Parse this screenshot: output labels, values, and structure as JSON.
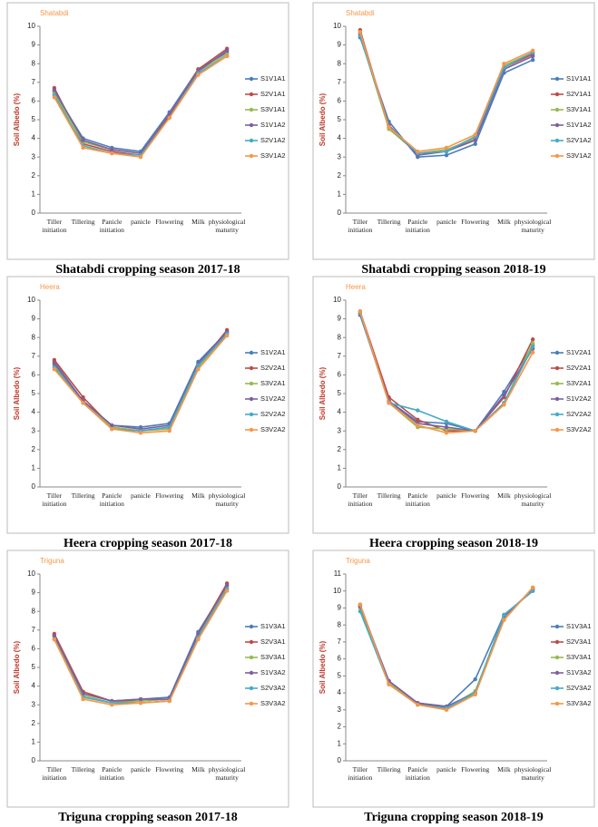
{
  "chart_data": [
    {
      "type": "line",
      "title": "Shatabdi",
      "y_label": "Soil Albedo (%)",
      "caption": "Shatabdi cropping season 2017-18",
      "categories": [
        "Tiller initiation",
        "Tillering",
        "Panicle initiation",
        "panicle",
        "Flowering",
        "Milk",
        "physiological maturity"
      ],
      "ylim": [
        0,
        10
      ],
      "yticks": [
        0,
        1,
        2,
        3,
        4,
        5,
        6,
        7,
        8,
        9,
        10
      ],
      "series": [
        {
          "name": "S1V1A1",
          "color": "#4a7ebb",
          "values": [
            6.5,
            4.0,
            3.5,
            3.3,
            5.4,
            7.7,
            8.6
          ]
        },
        {
          "name": "S2V1A1",
          "color": "#be4b48",
          "values": [
            6.7,
            3.7,
            3.3,
            3.1,
            5.2,
            7.7,
            8.8
          ]
        },
        {
          "name": "S3V1A1",
          "color": "#98b954",
          "values": [
            6.4,
            3.8,
            3.4,
            3.2,
            5.3,
            7.6,
            8.5
          ]
        },
        {
          "name": "S1V1A2",
          "color": "#7d60a0",
          "values": [
            6.6,
            3.9,
            3.4,
            3.2,
            5.3,
            7.6,
            8.7
          ]
        },
        {
          "name": "S2V1A2",
          "color": "#46aac5",
          "values": [
            6.3,
            3.6,
            3.2,
            3.1,
            5.1,
            7.5,
            8.4
          ]
        },
        {
          "name": "S3V1A2",
          "color": "#f79646",
          "values": [
            6.2,
            3.5,
            3.2,
            3.0,
            5.1,
            7.4,
            8.4
          ]
        }
      ]
    },
    {
      "type": "line",
      "title": "Shatabdi",
      "y_label": "Soil Albedo (%)",
      "caption": "Shatabdi cropping season 2018-19",
      "categories": [
        "Tiller initiation",
        "Tillering",
        "Panicle initiation",
        "panicle",
        "Flowering",
        "Milk",
        "physiological maturity"
      ],
      "ylim": [
        0,
        10
      ],
      "yticks": [
        0,
        1,
        2,
        3,
        4,
        5,
        6,
        7,
        8,
        9,
        10
      ],
      "series": [
        {
          "name": "S1V1A1",
          "color": "#4a7ebb",
          "values": [
            9.4,
            4.9,
            3.0,
            3.1,
            3.7,
            7.5,
            8.2
          ]
        },
        {
          "name": "S2V1A1",
          "color": "#be4b48",
          "values": [
            9.8,
            4.6,
            3.2,
            3.3,
            4.0,
            7.8,
            8.5
          ]
        },
        {
          "name": "S3V1A1",
          "color": "#98b954",
          "values": [
            9.5,
            4.5,
            3.2,
            3.4,
            4.0,
            7.9,
            8.6
          ]
        },
        {
          "name": "S1V1A2",
          "color": "#7d60a0",
          "values": [
            9.6,
            4.7,
            3.1,
            3.3,
            3.9,
            7.7,
            8.4
          ]
        },
        {
          "name": "S2V1A2",
          "color": "#46aac5",
          "values": [
            9.5,
            4.6,
            3.2,
            3.3,
            4.1,
            7.8,
            8.6
          ]
        },
        {
          "name": "S3V1A2",
          "color": "#f79646",
          "values": [
            9.7,
            4.6,
            3.3,
            3.5,
            4.2,
            8.0,
            8.7
          ]
        }
      ]
    },
    {
      "type": "line",
      "title": "Heera",
      "y_label": "Soil Albedo (%)",
      "caption": "Heera cropping season 2017-18",
      "categories": [
        "Tiller initiation",
        "Tillering",
        "Panicle initiation",
        "panicle",
        "Flowering",
        "Milk",
        "physiological maturity"
      ],
      "ylim": [
        0,
        10
      ],
      "yticks": [
        0,
        1,
        2,
        3,
        4,
        5,
        6,
        7,
        8,
        9,
        10
      ],
      "series": [
        {
          "name": "S1V2A1",
          "color": "#4a7ebb",
          "values": [
            6.7,
            4.6,
            3.3,
            3.2,
            3.4,
            6.7,
            8.3
          ]
        },
        {
          "name": "S2V2A1",
          "color": "#be4b48",
          "values": [
            6.8,
            4.8,
            3.2,
            3.0,
            3.2,
            6.5,
            8.4
          ]
        },
        {
          "name": "S3V2A1",
          "color": "#98b954",
          "values": [
            6.5,
            4.5,
            3.2,
            3.0,
            3.1,
            6.4,
            8.2
          ]
        },
        {
          "name": "S1V2A2",
          "color": "#7d60a0",
          "values": [
            6.6,
            4.6,
            3.3,
            3.1,
            3.3,
            6.6,
            8.3
          ]
        },
        {
          "name": "S2V2A2",
          "color": "#46aac5",
          "values": [
            6.4,
            4.5,
            3.1,
            3.0,
            3.2,
            6.5,
            8.2
          ]
        },
        {
          "name": "S3V2A2",
          "color": "#f79646",
          "values": [
            6.3,
            4.5,
            3.1,
            2.9,
            3.0,
            6.3,
            8.1
          ]
        }
      ]
    },
    {
      "type": "line",
      "title": "Heera",
      "y_label": "Soil Albedo (%)",
      "caption": "Heera cropping season 2018-19",
      "categories": [
        "Tiller initiation",
        "Tillering",
        "Panicle initiation",
        "panicle",
        "Flowering",
        "Milk",
        "physiological maturity"
      ],
      "ylim": [
        0,
        10
      ],
      "yticks": [
        0,
        1,
        2,
        3,
        4,
        5,
        6,
        7,
        8,
        9,
        10
      ],
      "series": [
        {
          "name": "S1V2A1",
          "color": "#4a7ebb",
          "values": [
            9.3,
            4.6,
            3.5,
            3.4,
            3.0,
            5.1,
            7.6
          ]
        },
        {
          "name": "S2V2A1",
          "color": "#be4b48",
          "values": [
            9.4,
            4.8,
            3.6,
            3.0,
            3.0,
            4.8,
            7.9
          ]
        },
        {
          "name": "S3V2A1",
          "color": "#98b954",
          "values": [
            9.3,
            4.5,
            3.2,
            3.1,
            3.0,
            4.5,
            7.7
          ]
        },
        {
          "name": "S1V2A2",
          "color": "#7d60a0",
          "values": [
            9.2,
            4.6,
            3.4,
            3.2,
            3.0,
            4.9,
            7.4
          ]
        },
        {
          "name": "S2V2A2",
          "color": "#46aac5",
          "values": [
            9.3,
            4.5,
            4.1,
            3.5,
            3.0,
            4.5,
            7.5
          ]
        },
        {
          "name": "S3V2A2",
          "color": "#f79646",
          "values": [
            9.4,
            4.5,
            3.3,
            2.9,
            3.0,
            4.4,
            7.2
          ]
        }
      ]
    },
    {
      "type": "line",
      "title": "Triguna",
      "y_label": "Soil Albedo (%)",
      "caption": "Triguna  cropping season 2017-18",
      "categories": [
        "Tiller initiation",
        "Tillering",
        "Panicle initiation",
        "panicle",
        "Flowering",
        "Milk",
        "physiological maturity"
      ],
      "ylim": [
        0,
        10
      ],
      "yticks": [
        0,
        1,
        2,
        3,
        4,
        5,
        6,
        7,
        8,
        9,
        10
      ],
      "series": [
        {
          "name": "S1V3A1",
          "color": "#4a7ebb",
          "values": [
            6.7,
            3.6,
            3.2,
            3.3,
            3.4,
            6.9,
            9.4
          ]
        },
        {
          "name": "S2V3A1",
          "color": "#be4b48",
          "values": [
            6.8,
            3.7,
            3.2,
            3.2,
            3.3,
            6.8,
            9.5
          ]
        },
        {
          "name": "S3V3A1",
          "color": "#98b954",
          "values": [
            6.6,
            3.5,
            3.1,
            3.2,
            3.3,
            6.7,
            9.3
          ]
        },
        {
          "name": "S1V3A2",
          "color": "#7d60a0",
          "values": [
            6.7,
            3.6,
            3.2,
            3.3,
            3.3,
            6.8,
            9.4
          ]
        },
        {
          "name": "S2V3A2",
          "color": "#46aac5",
          "values": [
            6.5,
            3.4,
            3.1,
            3.1,
            3.2,
            6.6,
            9.2
          ]
        },
        {
          "name": "S3V3A2",
          "color": "#f79646",
          "values": [
            6.5,
            3.3,
            3.0,
            3.1,
            3.2,
            6.5,
            9.1
          ]
        }
      ]
    },
    {
      "type": "line",
      "title": "Triguna",
      "y_label": "Soil Albedo (%)",
      "caption": "Triguna  cropping season 2018-19",
      "categories": [
        "Tiller initiation",
        "Tillering",
        "Panicle initiation",
        "panicle",
        "Flowering",
        "Milk",
        "physiological maturity"
      ],
      "ylim": [
        0,
        11
      ],
      "yticks": [
        0,
        1,
        2,
        3,
        4,
        5,
        6,
        7,
        8,
        9,
        10,
        11
      ],
      "series": [
        {
          "name": "S1V3A1",
          "color": "#4a7ebb",
          "values": [
            9.1,
            4.7,
            3.4,
            3.2,
            4.8,
            8.6,
            10.0
          ]
        },
        {
          "name": "S2V3A1",
          "color": "#be4b48",
          "values": [
            9.2,
            4.6,
            3.4,
            3.1,
            4.0,
            8.3,
            10.2
          ]
        },
        {
          "name": "S3V3A1",
          "color": "#98b954",
          "values": [
            9.0,
            4.6,
            3.3,
            3.1,
            4.1,
            8.4,
            10.1
          ]
        },
        {
          "name": "S1V3A2",
          "color": "#7d60a0",
          "values": [
            9.1,
            4.7,
            3.4,
            3.2,
            4.0,
            8.5,
            10.1
          ]
        },
        {
          "name": "S2V3A2",
          "color": "#46aac5",
          "values": [
            8.8,
            4.5,
            3.3,
            3.1,
            4.0,
            8.6,
            10.0
          ]
        },
        {
          "name": "S3V3A2",
          "color": "#f79646",
          "values": [
            9.2,
            4.5,
            3.3,
            3.0,
            3.9,
            8.3,
            10.2
          ]
        }
      ]
    }
  ]
}
